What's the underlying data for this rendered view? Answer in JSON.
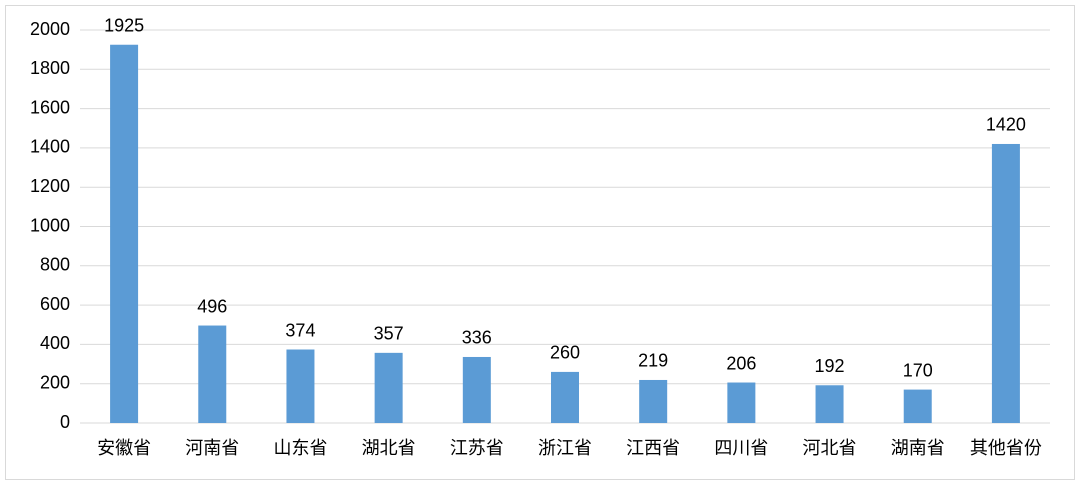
{
  "chart_data": {
    "type": "bar",
    "categories": [
      "安徽省",
      "河南省",
      "山东省",
      "湖北省",
      "江苏省",
      "浙江省",
      "江西省",
      "四川省",
      "河北省",
      "湖南省",
      "其他省份"
    ],
    "values": [
      1925,
      496,
      374,
      357,
      336,
      260,
      219,
      206,
      192,
      170,
      1420
    ],
    "color": "#5b9bd5",
    "ylim": [
      0,
      2000
    ],
    "yticks": [
      0,
      200,
      400,
      600,
      800,
      1000,
      1200,
      1400,
      1600,
      1800,
      2000
    ],
    "grid": true,
    "data_labels": true
  }
}
